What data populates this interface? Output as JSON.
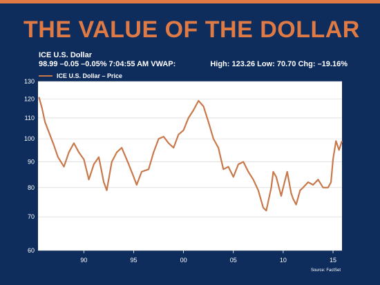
{
  "slide": {
    "title": "THE VALUE OF THE DOLLAR",
    "subtitle_line1": "ICE U.S. Dollar",
    "subtitle_line2": "98.99 –0.05 –0.05% 7:04:55 AM VWAP:",
    "stats": "High: 123.26 Low: 70.70 Chg: –19.16%",
    "source": "Source: FactSet"
  },
  "colors": {
    "background": "#0f2d5c",
    "accent": "#e07a45",
    "line": "#c8784a",
    "plot_bg": "#ffffff",
    "grid": "#cfcfcf"
  },
  "chart_data": {
    "type": "line",
    "title": "ICE U.S. Dollar",
    "log_scale": true,
    "grid": true,
    "legend": "top-left",
    "ylim": [
      60,
      130
    ],
    "xlim": [
      1985.4,
      2015.9
    ],
    "y_ticks": [
      "130",
      "120",
      "110",
      "100",
      "90",
      "80",
      "70",
      "60"
    ],
    "x_ticks": [
      "90",
      "95",
      "00",
      "05",
      "10",
      "15"
    ],
    "series": [
      {
        "name": "ICE U.S. Dollar – Price",
        "x": [
          1985.5,
          1985.8,
          1986.1,
          1986.5,
          1987.0,
          1987.4,
          1988.0,
          1988.5,
          1989.0,
          1989.5,
          1990.0,
          1990.5,
          1991.0,
          1991.5,
          1992.0,
          1992.3,
          1992.8,
          1993.3,
          1993.8,
          1994.5,
          1995.0,
          1995.3,
          1995.8,
          1996.5,
          1997.0,
          1997.5,
          1998.0,
          1998.5,
          1999.0,
          1999.5,
          2000.0,
          2000.5,
          2001.0,
          2001.5,
          2002.0,
          2002.5,
          2003.0,
          2003.5,
          2004.0,
          2004.5,
          2005.0,
          2005.5,
          2006.0,
          2006.5,
          2007.0,
          2007.5,
          2008.0,
          2008.3,
          2008.8,
          2009.0,
          2009.3,
          2009.8,
          2010.0,
          2010.4,
          2010.8,
          2011.0,
          2011.3,
          2011.7,
          2012.0,
          2012.5,
          2013.0,
          2013.5,
          2014.0,
          2014.5,
          2014.8,
          2015.0,
          2015.3,
          2015.6,
          2015.9
        ],
        "values": [
          121,
          115,
          108,
          103,
          97,
          92,
          88,
          94,
          98,
          94,
          91,
          83,
          89,
          92,
          82,
          79,
          90,
          94,
          96,
          89,
          84,
          81,
          86,
          87,
          94,
          100,
          101,
          98,
          96,
          102,
          104,
          110,
          114,
          119,
          116,
          108,
          100,
          96,
          87,
          88,
          84,
          89,
          90,
          86,
          83,
          79,
          73,
          72,
          80,
          86,
          84,
          77,
          80,
          86,
          78,
          76,
          74,
          79,
          80,
          82,
          81,
          83,
          80,
          80,
          82,
          91,
          99,
          95,
          99
        ]
      }
    ]
  }
}
